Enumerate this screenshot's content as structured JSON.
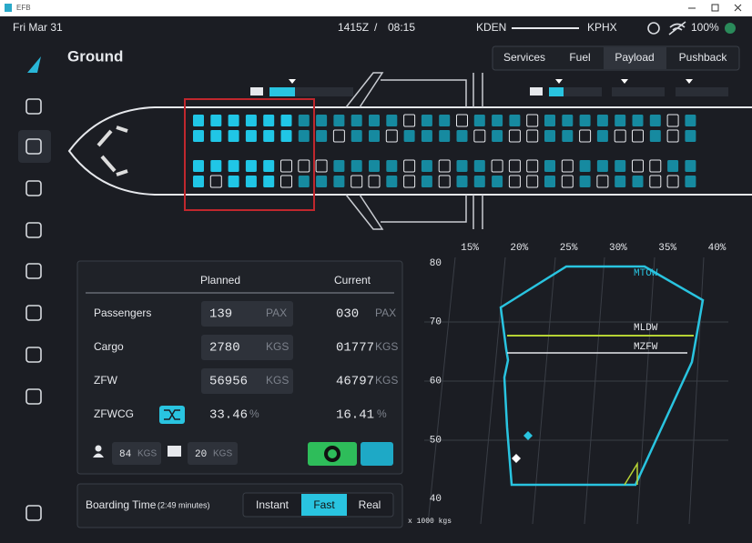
{
  "window": {
    "title": "EFB"
  },
  "status_bar": {
    "date": "Fri Mar 31",
    "utc_time": "1415Z",
    "separator": "/",
    "local_time": "08:15",
    "origin": "KDEN",
    "destination": "KPHX",
    "battery": "100%"
  },
  "page_title": "Ground",
  "tabs": [
    "Services",
    "Fuel",
    "Payload",
    "Pushback"
  ],
  "payload_table": {
    "headers": [
      "Planned",
      "Current"
    ],
    "rows": [
      {
        "label": "Passengers",
        "planned": "139",
        "planned_unit": "PAX",
        "current": "030",
        "current_unit": "PAX"
      },
      {
        "label": "Cargo",
        "planned": "2780",
        "planned_unit": "KGS",
        "current": "01777",
        "current_unit": "KGS"
      },
      {
        "label": "ZFW",
        "planned": "56956",
        "planned_unit": "KGS",
        "current": "46797",
        "current_unit": "KGS"
      },
      {
        "label": "ZFWCG",
        "planned": "33.46",
        "planned_unit": "%",
        "current": "16.41",
        "current_unit": "%"
      }
    ]
  },
  "cabin_weights": [
    {
      "value": "84",
      "unit": "KGS"
    },
    {
      "value": "20",
      "unit": "KGS"
    }
  ],
  "boarding": {
    "label": "Boarding Time",
    "duration": "(2:49 minutes)",
    "options": [
      "Instant",
      "Fast",
      "Real"
    ]
  },
  "cg_chart": {
    "x_labels": [
      "15%",
      "20%",
      "25%",
      "30%",
      "35%",
      "40%"
    ],
    "y_labels": [
      80,
      70,
      60,
      50,
      40
    ],
    "y_unit": "x 1000 kgs",
    "limits": [
      "MTOW",
      "MLDW",
      "MZFW"
    ]
  }
}
